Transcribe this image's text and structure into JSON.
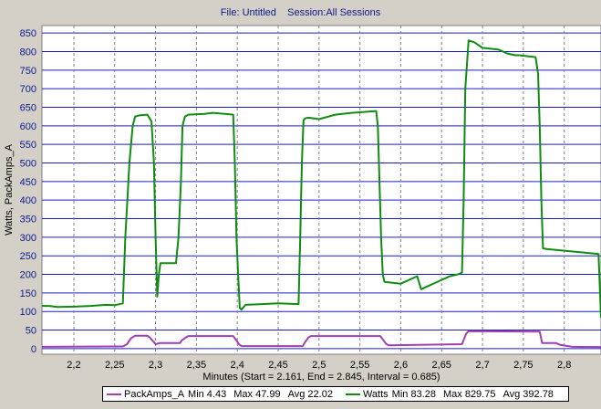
{
  "header": {
    "file_label": "File: Untitled",
    "session_label": "Session:All Sessions",
    "combined": "File: Untitled    Session:All Sessions"
  },
  "chart_data": {
    "type": "line",
    "xlabel": "Minutes (Start = 2.161, End = 2.845, Interval = 0.685)",
    "ylabel": "Watts, PackAmps_A",
    "xlim": [
      2.161,
      2.845
    ],
    "ylim": [
      -15,
      870
    ],
    "yticks": [
      0,
      50,
      100,
      150,
      200,
      250,
      300,
      350,
      400,
      450,
      500,
      550,
      600,
      650,
      700,
      750,
      800,
      850
    ],
    "xticks": [
      2.2,
      2.25,
      2.3,
      2.35,
      2.4,
      2.45,
      2.5,
      2.55,
      2.6,
      2.65,
      2.7,
      2.75,
      2.8
    ],
    "xtick_labels": [
      "2,2",
      "2,25",
      "2,3",
      "2,35",
      "2,4",
      "2,45",
      "2,5",
      "2,55",
      "2,6",
      "2,65",
      "2,7",
      "2,75",
      "2,8"
    ],
    "grid": true,
    "legend_position": "bottom",
    "series": [
      {
        "name": "PackAmps_A",
        "color": "#a040b0",
        "stats": {
          "min": "Min 4.43",
          "max": "Max 47.99",
          "avg": "Avg 22.02"
        },
        "x": [
          2.161,
          2.26,
          2.265,
          2.27,
          2.275,
          2.29,
          2.293,
          2.297,
          2.3,
          2.305,
          2.31,
          2.33,
          2.332,
          2.337,
          2.34,
          2.395,
          2.398,
          2.402,
          2.405,
          2.48,
          2.483,
          2.487,
          2.49,
          2.575,
          2.578,
          2.582,
          2.585,
          2.675,
          2.68,
          2.683,
          2.77,
          2.773,
          2.79,
          2.795,
          2.81,
          2.845
        ],
        "y": [
          5,
          6,
          12,
          28,
          35,
          35,
          30,
          20,
          12,
          15,
          15,
          15,
          22,
          30,
          34,
          34,
          25,
          12,
          7,
          7,
          18,
          30,
          34,
          34,
          25,
          13,
          9,
          12,
          40,
          47,
          46,
          15,
          15,
          10,
          5,
          4.43
        ]
      },
      {
        "name": "Watts",
        "color": "#108c10",
        "stats": {
          "min": "Min 83.28",
          "max": "Max 829.75",
          "avg": "Avg 392.78"
        },
        "x": [
          2.161,
          2.17,
          2.18,
          2.2,
          2.22,
          2.24,
          2.25,
          2.26,
          2.263,
          2.268,
          2.272,
          2.275,
          2.28,
          2.29,
          2.295,
          2.298,
          2.3,
          2.302,
          2.304,
          2.306,
          2.308,
          2.31,
          2.325,
          2.328,
          2.331,
          2.333,
          2.336,
          2.34,
          2.36,
          2.37,
          2.395,
          2.397,
          2.399,
          2.401,
          2.403,
          2.405,
          2.41,
          2.43,
          2.45,
          2.475,
          2.477,
          2.479,
          2.481,
          2.483,
          2.487,
          2.5,
          2.52,
          2.54,
          2.57,
          2.572,
          2.574,
          2.576,
          2.578,
          2.58,
          2.6,
          2.62,
          2.625,
          2.65,
          2.66,
          2.67,
          2.675,
          2.677,
          2.679,
          2.683,
          2.69,
          2.7,
          2.72,
          2.73,
          2.74,
          2.745,
          2.765,
          2.768,
          2.77,
          2.772,
          2.774,
          2.78,
          2.79,
          2.842,
          2.845
        ],
        "y": [
          115,
          115,
          112,
          113,
          115,
          118,
          117,
          122,
          300,
          500,
          600,
          625,
          628,
          630,
          612,
          500,
          300,
          140,
          200,
          230,
          230,
          230,
          230,
          300,
          450,
          600,
          625,
          630,
          632,
          635,
          630,
          500,
          300,
          200,
          110,
          105,
          118,
          120,
          122,
          120,
          300,
          500,
          615,
          620,
          622,
          618,
          630,
          635,
          640,
          600,
          450,
          300,
          200,
          180,
          175,
          195,
          160,
          185,
          195,
          200,
          205,
          400,
          700,
          830,
          825,
          810,
          805,
          795,
          790,
          790,
          785,
          740,
          600,
          400,
          270,
          268,
          266,
          255,
          83.28
        ]
      }
    ]
  }
}
